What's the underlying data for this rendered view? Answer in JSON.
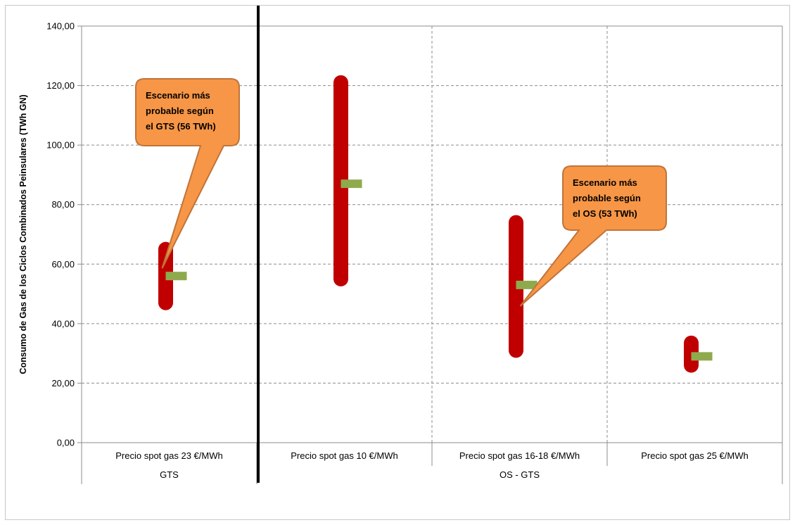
{
  "chart_data": {
    "type": "range",
    "ylabel": "Consumo de Gas de los Ciclos Combinados Peinsulares (TWh GN)",
    "ylim": [
      0,
      140
    ],
    "ytick_step": 20,
    "ytick_labels": [
      "0,00",
      "20,00",
      "40,00",
      "60,00",
      "80,00",
      "100,00",
      "120,00",
      "140,00"
    ],
    "grid": true,
    "categories": [
      "Precio spot gas 23 €/MWh",
      "Precio spot gas 10 €/MWh",
      "Precio spot gas 16-18 €/MWh",
      "Precio spot gas 25 €/MWh"
    ],
    "groups": [
      {
        "label": "GTS",
        "span": [
          0,
          0
        ]
      },
      {
        "label": "OS - GTS",
        "span": [
          1,
          3
        ]
      }
    ],
    "ranges": [
      {
        "low": 47,
        "high": 65
      },
      {
        "low": 55,
        "high": 121
      },
      {
        "low": 31,
        "high": 74
      },
      {
        "low": 26,
        "high": 33.5
      }
    ],
    "point_values": [
      56,
      87,
      53,
      29
    ],
    "range_color": "#c00000",
    "point_color": "#8faa4d",
    "annotations": [
      {
        "lines": [
          "Escenario más",
          "probable según",
          "el GTS (56 TWh)"
        ],
        "category": 0,
        "value": 56
      },
      {
        "lines": [
          "Escenario más",
          "probable según",
          "el OS (53 TWh)"
        ],
        "category": 2,
        "value": 53
      }
    ],
    "callout_fill": "#f79646",
    "callout_stroke": "#c0743a"
  }
}
